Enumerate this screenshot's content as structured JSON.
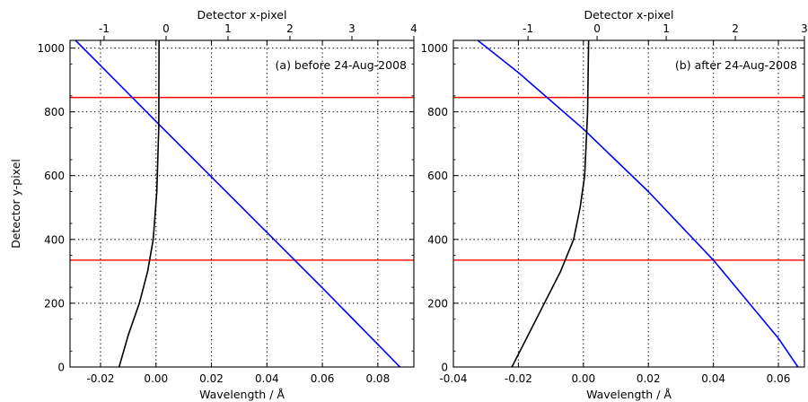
{
  "chart_data": [
    {
      "type": "line",
      "annotation": "(a) before 24-Aug-2008",
      "xlabel": "Wavelength / Å",
      "ylabel": "Detector y-pixel",
      "top_xlabel": "Detector x-pixel",
      "xlim": [
        -0.031,
        0.093
      ],
      "ylim": [
        0,
        1024
      ],
      "top_xlim": [
        -1.55,
        4.0
      ],
      "x_ticks": [
        -0.02,
        0.0,
        0.02,
        0.04,
        0.06,
        0.08
      ],
      "x_tick_labels": [
        "-0.02",
        "0.00",
        "0.02",
        "0.04",
        "0.06",
        "0.08"
      ],
      "top_ticks": [
        -1,
        0,
        1,
        2,
        3,
        4
      ],
      "top_tick_labels": [
        "-1",
        "0",
        "1",
        "2",
        "3",
        "4"
      ],
      "y_ticks": [
        0,
        200,
        400,
        600,
        800,
        1000
      ],
      "y_tick_labels": [
        "0",
        "200",
        "400",
        "600",
        "800",
        "1000"
      ],
      "grid": true,
      "hlines": [
        {
          "y": 845,
          "color": "#ff0000"
        },
        {
          "y": 335,
          "color": "#ff0000"
        }
      ],
      "series": [
        {
          "color": "#0000ff",
          "x": [
            -0.029,
            0.0,
            0.02,
            0.04,
            0.06,
            0.088
          ],
          "y": [
            1024,
            770,
            596,
            422,
            248,
            0
          ]
        },
        {
          "color": "#000000",
          "x": [
            -0.0133,
            -0.01,
            -0.006,
            -0.003,
            -0.001,
            0.0003,
            0.001,
            0.0011
          ],
          "y": [
            0,
            100,
            200,
            300,
            400,
            550,
            750,
            1024
          ]
        }
      ]
    },
    {
      "type": "line",
      "annotation": "(b) after 24-Aug-2008",
      "xlabel": "Wavelength / Å",
      "ylabel": "",
      "top_xlabel": "Detector x-pixel",
      "xlim": [
        -0.04,
        0.068
      ],
      "ylim": [
        0,
        1024
      ],
      "top_xlim": [
        -2.08,
        3.0
      ],
      "x_ticks": [
        -0.04,
        -0.02,
        0.0,
        0.02,
        0.04,
        0.06
      ],
      "x_tick_labels": [
        "-0.04",
        "-0.02",
        "0.00",
        "0.02",
        "0.04",
        "0.06"
      ],
      "top_ticks": [
        -1,
        0,
        1,
        2,
        3
      ],
      "top_tick_labels": [
        "-1",
        "0",
        "1",
        "2",
        "3"
      ],
      "y_ticks": [
        0,
        200,
        400,
        600,
        800,
        1000
      ],
      "y_tick_labels": [
        "0",
        "200",
        "400",
        "600",
        "800",
        "1000"
      ],
      "grid": true,
      "hlines": [
        {
          "y": 845,
          "color": "#ff0000"
        },
        {
          "y": 335,
          "color": "#ff0000"
        }
      ],
      "series": [
        {
          "color": "#0000ff",
          "x": [
            -0.0325,
            -0.02,
            0.0,
            0.02,
            0.04,
            0.06,
            0.066
          ],
          "y": [
            1024,
            923,
            746,
            550,
            335,
            90,
            0
          ]
        },
        {
          "color": "#000000",
          "x": [
            -0.022,
            -0.017,
            -0.012,
            -0.007,
            -0.003,
            -0.001,
            0.0004,
            0.0013,
            0.0016
          ],
          "y": [
            0,
            100,
            200,
            300,
            400,
            500,
            600,
            800,
            1024
          ]
        }
      ]
    }
  ]
}
